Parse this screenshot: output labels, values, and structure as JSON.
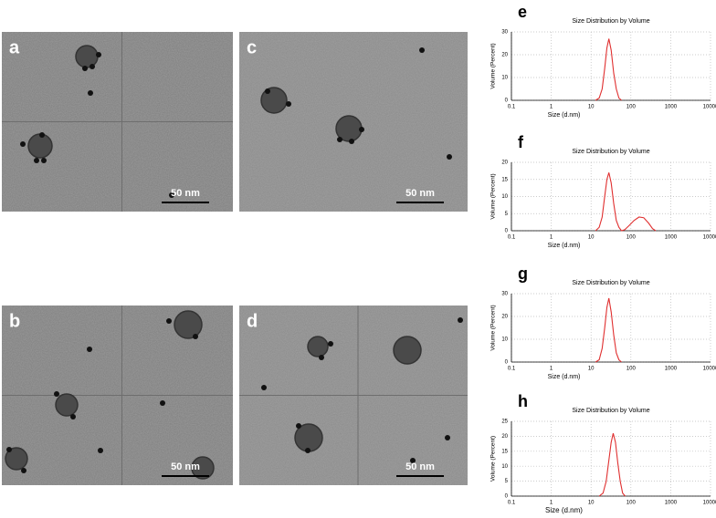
{
  "panels": [
    {
      "label": "a",
      "scale_bar": "50 nm"
    },
    {
      "label": "c",
      "scale_bar": "50 nm"
    },
    {
      "label": "b",
      "scale_bar": "50 nm"
    },
    {
      "label": "d",
      "scale_bar": "50 nm"
    }
  ],
  "chart_data": [
    {
      "type": "line",
      "label": "e",
      "title": "Size Distribution by Volume",
      "x_label": "Size (d.nm)",
      "y_label": "Volume (Percent)",
      "x": [
        13,
        16,
        19,
        22,
        25,
        28,
        32,
        37,
        43,
        50,
        58
      ],
      "series": [
        {
          "color": "#e03030",
          "values": [
            0,
            1,
            5,
            14,
            23,
            27,
            22,
            12,
            5,
            1,
            0
          ]
        }
      ],
      "log_x": true,
      "grid": true,
      "xlim": [
        0.1,
        10000
      ],
      "xticks": [
        0.1,
        1,
        10,
        100,
        1000,
        10000
      ],
      "ylim": [
        0,
        30
      ],
      "yticks": [
        0,
        10,
        20,
        30
      ]
    },
    {
      "type": "line",
      "label": "f",
      "title": "Size Distribution by Volume",
      "x_label": "Size (d.nm)",
      "y_label": "Volume (Percent)",
      "x": [
        13,
        16,
        19,
        22,
        25,
        28,
        32,
        37,
        43,
        50,
        58,
        70,
        90,
        120,
        160,
        210,
        280,
        350,
        420
      ],
      "series": [
        {
          "color": "#e03030",
          "values": [
            0,
            1,
            4,
            10,
            15,
            17,
            14,
            8,
            3,
            1,
            0,
            0.3,
            1.5,
            3,
            4,
            3.8,
            2.2,
            0.6,
            0
          ]
        }
      ],
      "log_x": true,
      "grid": true,
      "xlim": [
        0.1,
        10000
      ],
      "xticks": [
        0.1,
        1,
        10,
        100,
        1000,
        10000
      ],
      "ylim": [
        0,
        20
      ],
      "yticks": [
        0,
        5,
        10,
        15,
        20
      ]
    },
    {
      "type": "line",
      "label": "g",
      "title": "Size Distribution by Volume",
      "x_label": "Size (d.nm)",
      "y_label": "Volume (Percent)",
      "x": [
        13,
        16,
        19,
        22,
        25,
        28,
        32,
        37,
        43,
        50,
        58
      ],
      "series": [
        {
          "color": "#e03030",
          "values": [
            0,
            1,
            6,
            15,
            24,
            28,
            22,
            12,
            4,
            1,
            0
          ]
        }
      ],
      "log_x": true,
      "grid": true,
      "xlim": [
        0.1,
        10000
      ],
      "xticks": [
        0.1,
        1,
        10,
        100,
        1000,
        10000
      ],
      "ylim": [
        0,
        30
      ],
      "yticks": [
        0,
        10,
        20,
        30
      ]
    },
    {
      "type": "line",
      "label": "h",
      "title": "Size Distribution by Volume",
      "x_label": "Size (d.nm)",
      "y_label": "Volume (Percent)",
      "x": [
        16,
        20,
        24,
        28,
        32,
        36,
        41,
        47,
        54,
        62,
        72
      ],
      "series": [
        {
          "color": "#e03030",
          "values": [
            0,
            1,
            5,
            12,
            18,
            21,
            18,
            11,
            5,
            1,
            0
          ]
        }
      ],
      "log_x": true,
      "grid": true,
      "xlim": [
        0.1,
        10000
      ],
      "xticks": [
        0.1,
        1,
        10,
        100,
        1000,
        10000
      ],
      "ylim": [
        0,
        25
      ],
      "yticks": [
        0,
        5,
        10,
        15,
        20,
        25
      ]
    }
  ]
}
